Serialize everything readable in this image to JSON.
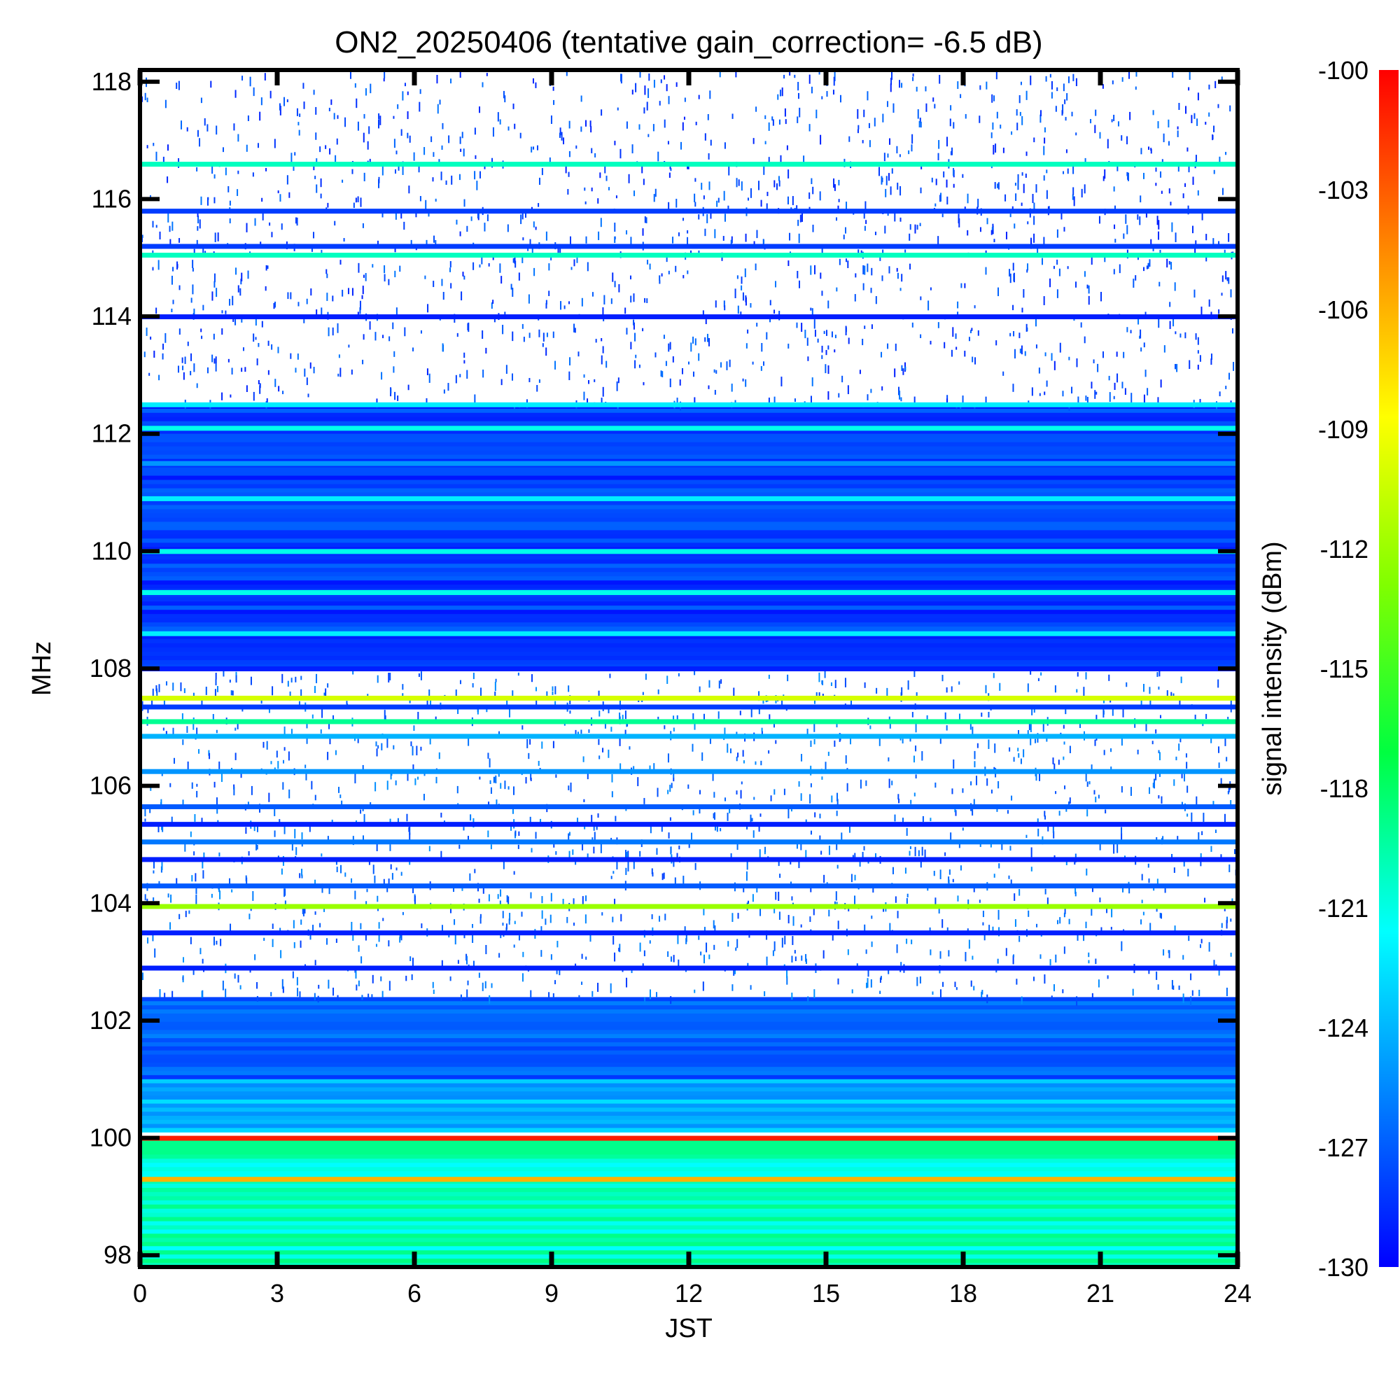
{
  "chart_data": {
    "type": "heatmap",
    "title": "ON2_20250406 (tentative gain_correction= -6.5 dB)",
    "xlabel": "JST",
    "ylabel": "MHz",
    "colorbar_label": "signal intensity (dBm)",
    "xlim": [
      0,
      24
    ],
    "ylim": [
      97.8,
      118.2
    ],
    "xticks": [
      "0",
      "3",
      "6",
      "9",
      "12",
      "15",
      "18",
      "21",
      "24"
    ],
    "yticks": [
      "98",
      "100",
      "102",
      "104",
      "106",
      "108",
      "110",
      "112",
      "114",
      "116",
      "118"
    ],
    "colorbar_range": [
      -130,
      -100
    ],
    "colorbar_ticks": [
      "-100",
      "-103",
      "-106",
      "-109",
      "-112",
      "-115",
      "-118",
      "-121",
      "-124",
      "-127",
      "-130"
    ],
    "colormap": [
      "#0000ff",
      "#0080ff",
      "#00ffff",
      "#00ff40",
      "#80ff00",
      "#ffff00",
      "#ff8000",
      "#ff0000"
    ],
    "background_color": "#ffffff",
    "continuous_bands": [
      {
        "freq": 116.6,
        "level": -120
      },
      {
        "freq": 115.8,
        "level": -128
      },
      {
        "freq": 115.2,
        "level": -128
      },
      {
        "freq": 115.05,
        "level": -120
      },
      {
        "freq": 114.0,
        "level": -129
      },
      {
        "freq": 112.5,
        "level": -122
      },
      {
        "freq": 112.1,
        "level": -121
      },
      {
        "freq": 111.5,
        "level": -125
      },
      {
        "freq": 110.9,
        "level": -122
      },
      {
        "freq": 110.0,
        "level": -121
      },
      {
        "freq": 109.3,
        "level": -121
      },
      {
        "freq": 108.6,
        "level": -122
      },
      {
        "freq": 108.0,
        "level": -129
      },
      {
        "freq": 107.5,
        "level": -110
      },
      {
        "freq": 107.35,
        "level": -128
      },
      {
        "freq": 107.1,
        "level": -119
      },
      {
        "freq": 106.85,
        "level": -124
      },
      {
        "freq": 106.25,
        "level": -125
      },
      {
        "freq": 105.65,
        "level": -127
      },
      {
        "freq": 105.35,
        "level": -129
      },
      {
        "freq": 105.05,
        "level": -126
      },
      {
        "freq": 104.75,
        "level": -129
      },
      {
        "freq": 104.3,
        "level": -127
      },
      {
        "freq": 103.95,
        "level": -112
      },
      {
        "freq": 103.5,
        "level": -129
      },
      {
        "freq": 102.9,
        "level": -129
      },
      {
        "freq": 100.0,
        "level": -101
      },
      {
        "freq": 99.3,
        "level": -106
      }
    ],
    "dense_regions": [
      {
        "from": 108.0,
        "to": 112.5,
        "level": -128
      },
      {
        "from": 102.4,
        "to": 101.0,
        "level": -127
      },
      {
        "from": 101.0,
        "to": 100.1,
        "level": -124
      },
      {
        "from": 100.0,
        "to": 97.8,
        "level": -120
      }
    ],
    "sparse_regions": [
      {
        "from": 112.5,
        "to": 118.2,
        "level": -129
      },
      {
        "from": 102.4,
        "to": 108.0,
        "level": -128
      }
    ]
  }
}
